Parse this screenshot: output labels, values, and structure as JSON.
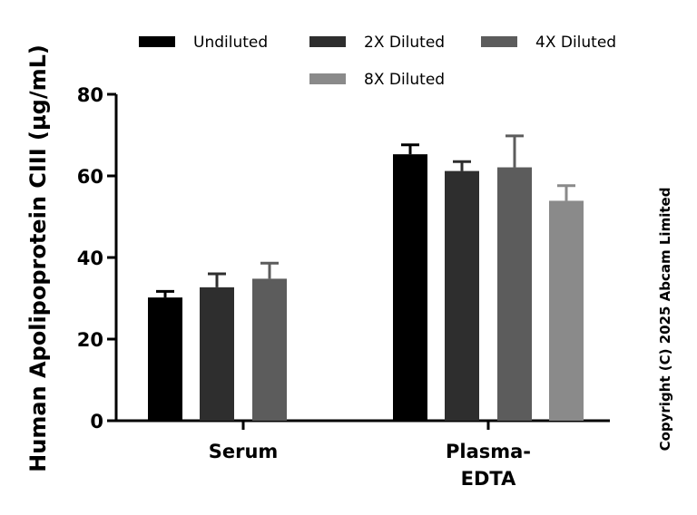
{
  "chart_data": {
    "type": "bar",
    "ylabel": "Human Apolipoprotein CIII (µg/mL)",
    "ylim": [
      0,
      80
    ],
    "yticks": [
      0,
      20,
      40,
      60,
      80
    ],
    "categories": [
      [
        "Serum"
      ],
      [
        "Plasma-",
        "EDTA"
      ]
    ],
    "series": [
      {
        "name": "Undiluted",
        "color": "#000000",
        "values": [
          30.2,
          65.3
        ],
        "errors": [
          1.5,
          2.3
        ]
      },
      {
        "name": "2X Diluted",
        "color": "#2e2e2e",
        "values": [
          32.7,
          61.2
        ],
        "errors": [
          3.3,
          2.3
        ]
      },
      {
        "name": "4X Diluted",
        "color": "#5c5c5c",
        "values": [
          34.8,
          62.1
        ],
        "errors": [
          3.8,
          7.7
        ]
      },
      {
        "name": "8X Diluted",
        "color": "#8a8a8a",
        "values": [
          null,
          53.9
        ],
        "errors": [
          null,
          3.7
        ]
      }
    ],
    "legend_position": "top",
    "grid": false
  },
  "copyright": "Copyright (C) 2025 Abcam Limited"
}
